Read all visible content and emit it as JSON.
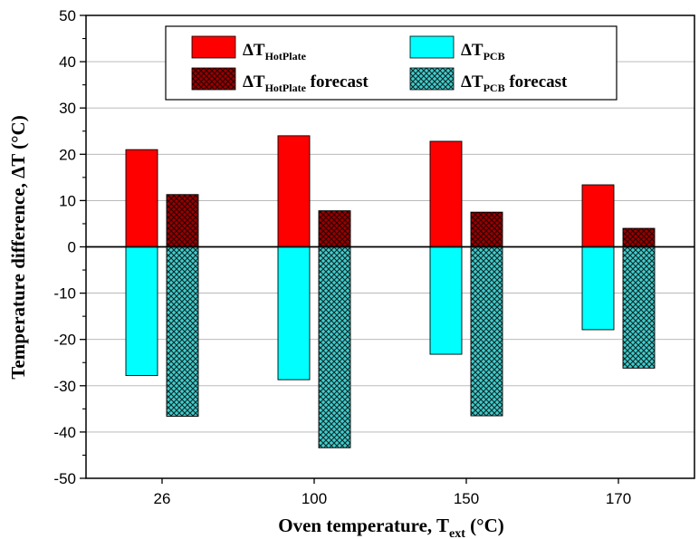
{
  "chart_data": {
    "type": "bar",
    "categories": [
      "26",
      "100",
      "150",
      "170"
    ],
    "series": [
      {
        "name": "ΔT_HotPlate",
        "color": "#ff0000",
        "pattern": "solid",
        "values": [
          21,
          24,
          22.8,
          13.4
        ]
      },
      {
        "name": "ΔT_PCB",
        "color": "#00ffff",
        "pattern": "solid",
        "values": [
          -27.8,
          -28.7,
          -23.2,
          -17.9
        ]
      },
      {
        "name": "ΔT_HotPlate forecast",
        "color": "#990000",
        "pattern": "crosshatch",
        "values": [
          11.3,
          7.8,
          7.5,
          4
        ]
      },
      {
        "name": "ΔT_PCB forecast",
        "color": "#33bbbb",
        "pattern": "crosshatch",
        "values": [
          -36.6,
          -43.4,
          -36.5,
          -26.2
        ]
      }
    ],
    "ylim": [
      -50,
      50
    ],
    "yticks": [
      -50,
      -40,
      -30,
      -20,
      -10,
      0,
      10,
      20,
      30,
      40,
      50
    ],
    "grid": true,
    "legend_position": "top"
  },
  "axes": {
    "ylabel": "Temperature difference, ΔT (°C)",
    "xlabel_main": "Oven temperature, T",
    "xlabel_sub": "ext",
    "xlabel_unit": " (°C)"
  },
  "legend": {
    "hotplate": {
      "main": "ΔT",
      "sub": "HotPlate",
      "suffix": ""
    },
    "pcb": {
      "main": "ΔT",
      "sub": "PCB",
      "suffix": ""
    },
    "hotplate_forecast": {
      "main": "ΔT",
      "sub": "HotPlate",
      "suffix": " forecast"
    },
    "pcb_forecast": {
      "main": "ΔT",
      "sub": "PCB",
      "suffix": " forecast"
    }
  }
}
